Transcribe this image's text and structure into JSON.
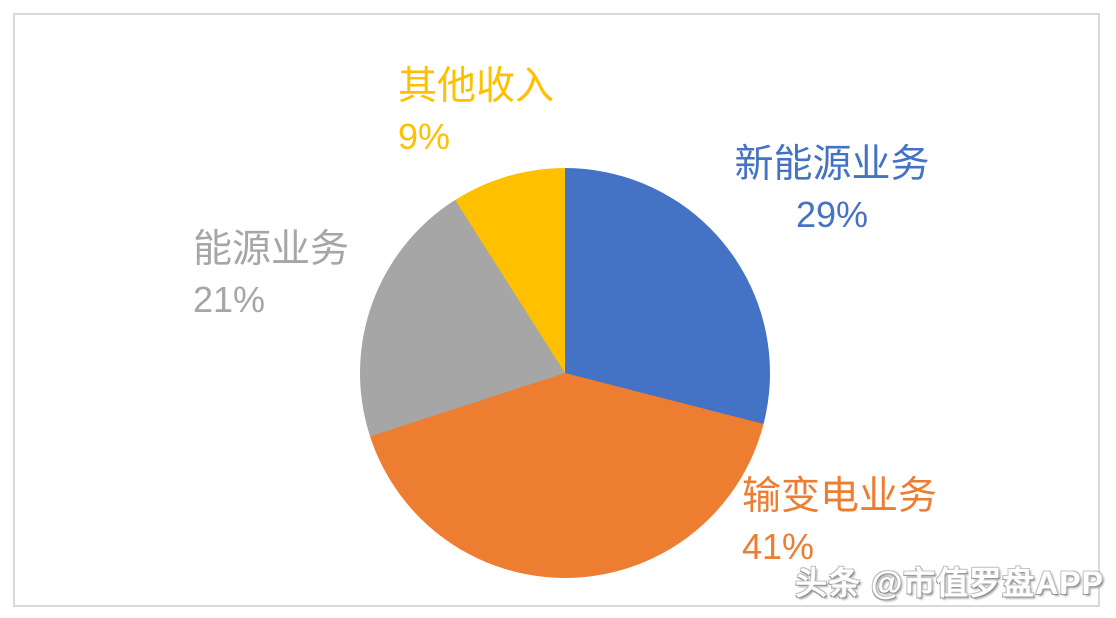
{
  "card": {
    "border_color": "#d9d9d9",
    "background": "#ffffff"
  },
  "chart_data": {
    "type": "pie",
    "title": "",
    "start_angle_deg": 0,
    "direction": "clockwise",
    "legend_position": "none",
    "data_labels": "outside, category name + percentage",
    "slices": [
      {
        "label": "新能源业务",
        "value": 29,
        "pct_label": "29%",
        "color": "#4472C4"
      },
      {
        "label": "输变电业务",
        "value": 41,
        "pct_label": "41%",
        "color": "#ED7D31"
      },
      {
        "label": "能源业务",
        "value": 21,
        "pct_label": "21%",
        "color": "#A6A6A6"
      },
      {
        "label": "其他收入",
        "value": 9,
        "pct_label": "9%",
        "color": "#FFC000"
      }
    ]
  },
  "watermark": {
    "text": "头条 @市值罗盘APP",
    "color": "#ffffff"
  }
}
